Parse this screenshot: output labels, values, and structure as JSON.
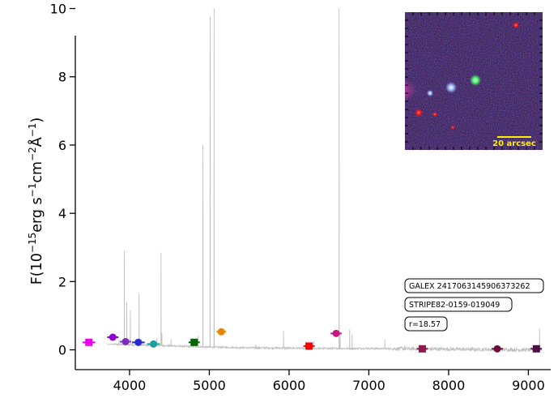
{
  "chart_data": {
    "type": "line",
    "title": "",
    "xlabel": "",
    "ylabel": "F(10^{-15}erg s^{-1}cm^{-2}Å^{-1})",
    "xlim": [
      3320,
      9280
    ],
    "ylim": [
      -0.58,
      10.25
    ],
    "x_ticks": [
      4000,
      5000,
      6000,
      7000,
      8000,
      9000
    ],
    "y_ticks": [
      0,
      2,
      4,
      6,
      8,
      10
    ],
    "grid": false,
    "spectrum": {
      "color": "#c0c0c0",
      "baseline": [
        [
          3800,
          0.16
        ],
        [
          4200,
          0.14
        ],
        [
          4600,
          0.11
        ],
        [
          5000,
          0.08
        ],
        [
          5500,
          0.06
        ],
        [
          6000,
          0.05
        ],
        [
          6500,
          0.04
        ],
        [
          7000,
          0.04
        ],
        [
          7500,
          0.03
        ],
        [
          8000,
          0.02
        ],
        [
          8500,
          0.01
        ],
        [
          9000,
          0.0
        ],
        [
          9150,
          0.02
        ]
      ],
      "lines": [
        {
          "x": 3727,
          "y": 0.15
        },
        {
          "x": 3869,
          "y": 0.3
        },
        {
          "x": 3889,
          "y": 0.25
        },
        {
          "x": 3935,
          "y": 2.9
        },
        {
          "x": 3965,
          "y": 1.4
        },
        {
          "x": 4010,
          "y": 1.15
        },
        {
          "x": 4120,
          "y": 1.65
        },
        {
          "x": 4340,
          "y": 0.35
        },
        {
          "x": 4395,
          "y": 2.85
        },
        {
          "x": 4405,
          "y": 0.5
        },
        {
          "x": 4520,
          "y": 0.3
        },
        {
          "x": 4860,
          "y": 0.4
        },
        {
          "x": 4920,
          "y": 6.0
        },
        {
          "x": 5010,
          "y": 9.75
        },
        {
          "x": 5060,
          "y": 10.0
        },
        {
          "x": 5580,
          "y": 0.15
        },
        {
          "x": 5930,
          "y": 0.55
        },
        {
          "x": 6310,
          "y": 0.25
        },
        {
          "x": 6627,
          "y": 10.0
        },
        {
          "x": 6640,
          "y": 0.5
        },
        {
          "x": 6760,
          "y": 0.6
        },
        {
          "x": 6790,
          "y": 0.45
        },
        {
          "x": 7200,
          "y": 0.3
        },
        {
          "x": 7450,
          "y": 0.12
        },
        {
          "x": 9140,
          "y": 0.62
        }
      ]
    },
    "photometry": [
      {
        "x": 3490,
        "y": 0.22,
        "xerr": 80,
        "marker": "square",
        "color": "#ee00ee"
      },
      {
        "x": 3790,
        "y": 0.37,
        "xerr": 70,
        "marker": "circle",
        "color": "#9400d3"
      },
      {
        "x": 3950,
        "y": 0.24,
        "xerr": 70,
        "marker": "circle",
        "color": "#7b2fbe"
      },
      {
        "x": 4110,
        "y": 0.22,
        "xerr": 80,
        "marker": "circle",
        "color": "#2a2ad0"
      },
      {
        "x": 4300,
        "y": 0.17,
        "xerr": 80,
        "marker": "circle",
        "color": "#1aa0a0"
      },
      {
        "x": 4810,
        "y": 0.22,
        "xerr": 70,
        "marker": "square",
        "color": "#006400"
      },
      {
        "x": 5150,
        "y": 0.53,
        "xerr": 60,
        "marker": "circle",
        "color": "#e8850a"
      },
      {
        "x": 6250,
        "y": 0.11,
        "xerr": 70,
        "marker": "square",
        "color": "#ff0000"
      },
      {
        "x": 6590,
        "y": 0.48,
        "xerr": 70,
        "marker": "circle",
        "color": "#c71585"
      },
      {
        "x": 7670,
        "y": 0.03,
        "xerr": 70,
        "marker": "square",
        "color": "#8b1a4a"
      },
      {
        "x": 8610,
        "y": 0.03,
        "xerr": 70,
        "marker": "circle",
        "color": "#6b0f3a"
      },
      {
        "x": 9100,
        "y": 0.03,
        "xerr": 70,
        "marker": "square",
        "color": "#4a1040"
      }
    ],
    "annotations": [
      "GALEX 2417063145906373262",
      "STRIPE82-0159-019049",
      "r=18.57"
    ],
    "inset": {
      "scale_label": "20 arcsec",
      "scale_color": "#ffee00"
    }
  }
}
